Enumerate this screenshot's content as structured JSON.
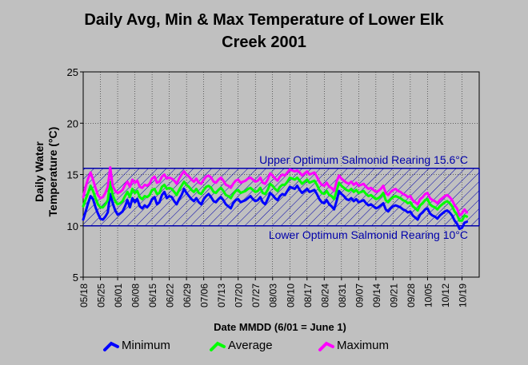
{
  "chart_data": {
    "type": "line",
    "title_line1": "Daily Avg, Min & Max Temperature of Lower Elk",
    "title_line2": "Creek 2001",
    "ylabel_line1": "Daily Water",
    "ylabel_line2": "Temperature (°C)",
    "xlabel": "Date MMDD (6/01 = June 1)",
    "ylim": [
      5,
      25
    ],
    "yticks": [
      "5",
      "10",
      "15",
      "20",
      "25"
    ],
    "xticks": [
      "05/18",
      "05/25",
      "06/01",
      "06/08",
      "06/15",
      "06/22",
      "06/29",
      "07/06",
      "07/13",
      "07/20",
      "07/27",
      "08/03",
      "08/10",
      "08/17",
      "08/24",
      "08/31",
      "09/07",
      "09/14",
      "09/21",
      "09/28",
      "10/05",
      "10/12",
      "10/19"
    ],
    "x_start": "05/18",
    "grid": true,
    "band": {
      "lower": 10,
      "upper": 15.6,
      "upper_label": "Upper Optimum Salmonid Rearing 15.6°C",
      "lower_label": "Lower Optimum Salmonid Rearing 10°C"
    },
    "series": [
      {
        "name": "Minimum",
        "color": "#0000ff",
        "values": [
          10.6,
          11.4,
          12.2,
          12.9,
          12.6,
          11.8,
          11.2,
          10.7,
          10.6,
          10.9,
          11.3,
          13.1,
          12.2,
          11.5,
          11.1,
          11.2,
          11.4,
          11.9,
          12.5,
          11.8,
          12.7,
          12.3,
          12.6,
          11.9,
          11.7,
          12.0,
          11.8,
          12.1,
          12.6,
          12.8,
          12.1,
          12.3,
          13.0,
          13.3,
          12.7,
          12.9,
          12.8,
          12.4,
          12.1,
          12.6,
          13.0,
          13.6,
          13.2,
          12.9,
          12.6,
          12.4,
          12.7,
          12.3,
          12.1,
          12.6,
          12.9,
          13.1,
          12.8,
          12.4,
          12.3,
          12.6,
          12.8,
          12.5,
          12.1,
          11.9,
          11.7,
          12.2,
          12.5,
          12.6,
          12.3,
          12.4,
          12.5,
          12.7,
          12.9,
          12.6,
          12.4,
          12.5,
          12.8,
          12.3,
          12.1,
          12.6,
          13.2,
          13.0,
          12.7,
          12.5,
          12.9,
          13.1,
          13.0,
          13.4,
          13.8,
          13.7,
          13.6,
          13.9,
          13.5,
          13.2,
          13.4,
          13.6,
          13.3,
          13.4,
          13.5,
          13.1,
          12.6,
          12.3,
          12.2,
          12.5,
          12.1,
          11.9,
          11.6,
          12.4,
          13.4,
          13.1,
          12.9,
          12.6,
          12.5,
          12.7,
          12.4,
          12.6,
          12.3,
          12.4,
          12.5,
          12.2,
          12.0,
          12.1,
          11.9,
          11.7,
          11.8,
          12.0,
          12.2,
          11.6,
          11.4,
          11.7,
          11.9,
          12.0,
          11.9,
          11.8,
          11.6,
          11.5,
          11.3,
          11.4,
          11.0,
          10.8,
          10.6,
          11.1,
          11.3,
          11.6,
          11.7,
          11.2,
          11.0,
          10.9,
          10.7,
          11.0,
          11.2,
          11.4,
          11.5,
          11.3,
          11.0,
          10.5,
          10.2,
          9.7,
          9.8,
          10.3,
          10.4
        ]
      },
      {
        "name": "Average",
        "color": "#00ff00",
        "values": [
          11.9,
          12.6,
          13.2,
          13.9,
          13.4,
          12.7,
          12.1,
          11.8,
          11.8,
          12.1,
          12.5,
          14.3,
          13.0,
          12.4,
          12.1,
          12.2,
          12.4,
          12.9,
          13.3,
          12.8,
          13.6,
          13.2,
          13.4,
          12.8,
          12.6,
          12.9,
          12.8,
          13.0,
          13.5,
          13.6,
          13.1,
          13.2,
          13.8,
          14.0,
          13.6,
          13.7,
          13.6,
          13.3,
          13.0,
          13.5,
          13.9,
          14.3,
          14.0,
          13.8,
          13.5,
          13.3,
          13.6,
          13.2,
          13.1,
          13.5,
          13.8,
          13.9,
          13.7,
          13.3,
          13.2,
          13.5,
          13.7,
          13.4,
          13.0,
          12.9,
          12.7,
          13.1,
          13.4,
          13.5,
          13.2,
          13.3,
          13.4,
          13.6,
          13.7,
          13.5,
          13.3,
          13.4,
          13.7,
          13.2,
          13.1,
          13.5,
          14.1,
          13.9,
          13.6,
          13.4,
          13.8,
          14.0,
          14.0,
          14.3,
          14.7,
          14.6,
          14.5,
          14.7,
          14.4,
          14.1,
          14.3,
          14.5,
          14.2,
          14.3,
          14.4,
          14.0,
          13.5,
          13.2,
          13.1,
          13.4,
          13.0,
          12.9,
          12.6,
          13.4,
          14.2,
          13.9,
          13.7,
          13.5,
          13.4,
          13.6,
          13.3,
          13.5,
          13.2,
          13.3,
          13.4,
          13.1,
          12.9,
          13.0,
          12.8,
          12.6,
          12.7,
          12.9,
          13.2,
          12.5,
          12.3,
          12.6,
          12.8,
          12.9,
          12.8,
          12.7,
          12.5,
          12.4,
          12.2,
          12.3,
          11.9,
          11.7,
          11.5,
          12.0,
          12.2,
          12.5,
          12.6,
          12.1,
          11.9,
          11.8,
          11.6,
          11.9,
          12.1,
          12.3,
          12.4,
          12.2,
          11.9,
          11.4,
          11.1,
          10.5,
          10.5,
          11.0,
          10.9
        ]
      },
      {
        "name": "Maximum",
        "color": "#ff00ff",
        "values": [
          12.8,
          13.8,
          14.6,
          15.2,
          14.5,
          13.7,
          13.0,
          12.7,
          12.8,
          13.2,
          13.8,
          15.7,
          13.9,
          13.4,
          13.2,
          13.3,
          13.5,
          14.0,
          14.3,
          13.8,
          14.5,
          14.2,
          14.4,
          13.8,
          13.7,
          14.0,
          13.9,
          14.1,
          14.6,
          14.8,
          14.2,
          14.3,
          14.8,
          15.0,
          14.6,
          14.7,
          14.6,
          14.4,
          14.1,
          14.6,
          15.0,
          15.3,
          15.0,
          14.8,
          14.5,
          14.3,
          14.6,
          14.2,
          14.1,
          14.5,
          14.8,
          14.9,
          14.7,
          14.3,
          14.2,
          14.5,
          14.7,
          14.4,
          14.0,
          13.9,
          13.7,
          14.1,
          14.4,
          14.5,
          14.2,
          14.3,
          14.4,
          14.6,
          14.7,
          14.5,
          14.3,
          14.4,
          14.7,
          14.2,
          14.1,
          14.5,
          15.1,
          14.9,
          14.6,
          14.4,
          14.8,
          15.0,
          14.9,
          15.2,
          15.5,
          15.4,
          15.3,
          15.4,
          15.2,
          14.9,
          15.1,
          15.3,
          15.0,
          15.1,
          15.2,
          14.8,
          14.3,
          14.0,
          13.9,
          14.2,
          13.8,
          13.7,
          13.4,
          14.3,
          14.9,
          14.6,
          14.4,
          14.2,
          14.1,
          14.3,
          14.0,
          14.2,
          13.9,
          14.0,
          14.1,
          13.8,
          13.6,
          13.7,
          13.5,
          13.3,
          13.4,
          13.6,
          13.9,
          13.2,
          13.0,
          13.3,
          13.5,
          13.6,
          13.4,
          13.3,
          13.1,
          13.0,
          12.8,
          12.9,
          12.5,
          12.3,
          12.1,
          12.6,
          12.8,
          13.1,
          13.2,
          12.7,
          12.5,
          12.4,
          12.2,
          12.5,
          12.7,
          12.9,
          13.0,
          12.8,
          12.5,
          12.0,
          11.7,
          11.0,
          11.2,
          11.6,
          11.3
        ]
      }
    ],
    "legend_placement": "bottom"
  }
}
